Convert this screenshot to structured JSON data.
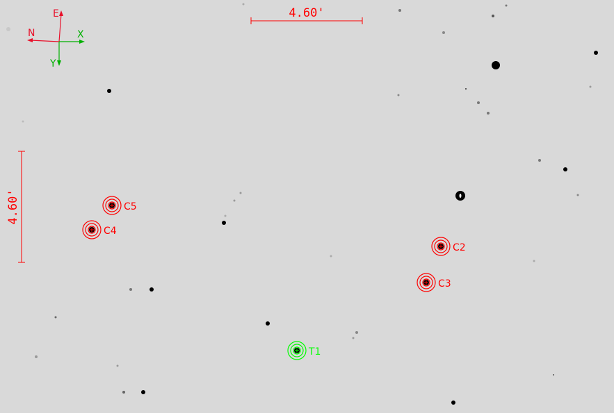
{
  "scale_bar": {
    "label_horizontal": "4.60'",
    "label_vertical": "4.60'",
    "color": "#ff0000"
  },
  "compass": {
    "north": "N",
    "east": "E",
    "x_axis": "X",
    "y_axis": "Y",
    "sky_color": "#e8102a",
    "pixel_color": "#00b000"
  },
  "apertures": [
    {
      "label": "T1",
      "role": "target",
      "color": "#00ff00"
    },
    {
      "label": "C2",
      "role": "comparison",
      "color": "#ff0000"
    },
    {
      "label": "C3",
      "role": "comparison",
      "color": "#ff0000"
    },
    {
      "label": "C4",
      "role": "comparison",
      "color": "#ff0000"
    },
    {
      "label": "C5",
      "role": "comparison",
      "color": "#ff0000"
    }
  ]
}
